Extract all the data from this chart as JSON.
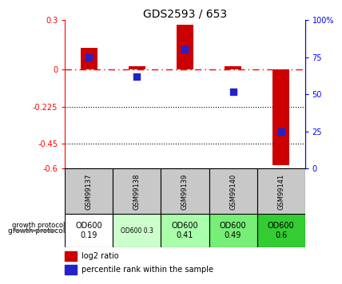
{
  "title": "GDS2593 / 653",
  "samples": [
    "GSM99137",
    "GSM99138",
    "GSM99139",
    "GSM99140",
    "GSM99141"
  ],
  "log2_ratios": [
    0.13,
    0.02,
    0.27,
    0.02,
    -0.58
  ],
  "percentile_ranks": [
    75,
    62,
    80,
    52,
    25
  ],
  "ylim_left": [
    -0.6,
    0.3
  ],
  "ylim_right": [
    0,
    100
  ],
  "yticks_left": [
    0.3,
    0.0,
    -0.225,
    -0.45,
    -0.6
  ],
  "yticks_left_labels": [
    "0.3",
    "0",
    "-0.225",
    "-0.45",
    "-0.6"
  ],
  "yticks_right": [
    100,
    75,
    50,
    25,
    0
  ],
  "yticks_right_labels": [
    "100%",
    "75",
    "50",
    "25",
    "0"
  ],
  "hlines": [
    -0.225,
    -0.45
  ],
  "bar_color": "#cc0000",
  "dot_color": "#2222cc",
  "growth_labels": [
    "OD600\n0.19",
    "OD600 0.3",
    "OD600\n0.41",
    "OD600\n0.49",
    "OD600\n0.6"
  ],
  "growth_colors": [
    "#ffffff",
    "#ccffcc",
    "#aaffaa",
    "#77ee77",
    "#33cc33"
  ],
  "growth_small": [
    false,
    true,
    false,
    false,
    false
  ],
  "header_color": "#c8c8c8",
  "bar_width": 0.35,
  "dot_size": 40,
  "pct_scale_min": -0.6,
  "pct_scale_max": 0.3,
  "pct_range_min": 0,
  "pct_range_max": 100
}
